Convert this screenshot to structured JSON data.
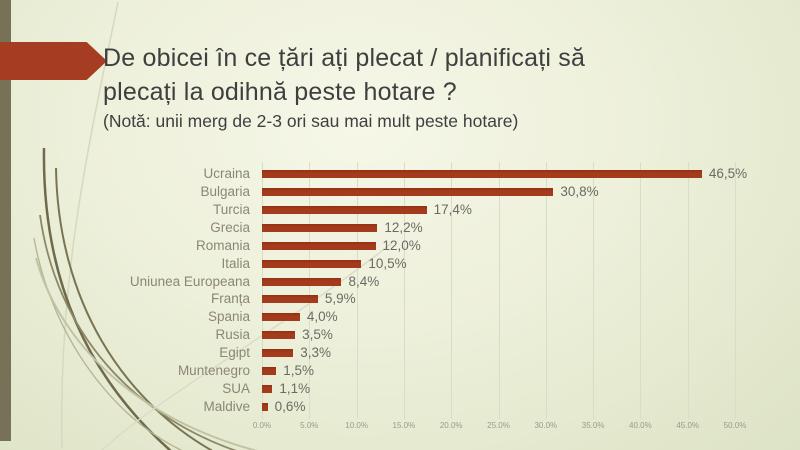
{
  "slide": {
    "title_line1": "De obicei în ce țări ați plecat / planificați să",
    "title_line2": "plecați la odihnă peste hotare ?",
    "note": "(Notă: unii merg de 2-3 ori sau mai mult peste hotare)"
  },
  "colors": {
    "bar": "#a43b1d",
    "arrow": "#a63d22",
    "side_bar": "#777257",
    "title_text": "#3f3f3f",
    "category_label": "#8b8678",
    "value_label": "#6b6b64",
    "axis_label": "#9a9a8c",
    "gridline": "#d9dcc9"
  },
  "chart_data": {
    "type": "bar",
    "orientation": "horizontal",
    "title": "",
    "xlabel": "",
    "ylabel": "",
    "categories": [
      "Ucraina",
      "Bulgaria",
      "Turcia",
      "Grecia",
      "Romania",
      "Italia",
      "Uniunea Europeana",
      "Franța",
      "Spania",
      "Rusia",
      "Egipt",
      "Muntenegro",
      "SUA",
      "Maldive"
    ],
    "values": [
      46.5,
      30.8,
      17.4,
      12.2,
      12.0,
      10.5,
      8.4,
      5.9,
      4.0,
      3.5,
      3.3,
      1.5,
      1.1,
      0.6
    ],
    "value_labels": [
      "46,5%",
      "30,8%",
      "17,4%",
      "12,2%",
      "12,0%",
      "10,5%",
      "8,4%",
      "5,9%",
      "4,0%",
      "3,5%",
      "3,3%",
      "1,5%",
      "1,1%",
      "0,6%"
    ],
    "x_ticks": [
      "0.0%",
      "5.0%",
      "10.0%",
      "15.0%",
      "20.0%",
      "25.0%",
      "30.0%",
      "35.0%",
      "40.0%",
      "45.0%",
      "50.0%"
    ],
    "xlim": [
      0,
      50
    ],
    "grid": true,
    "legend": false
  }
}
